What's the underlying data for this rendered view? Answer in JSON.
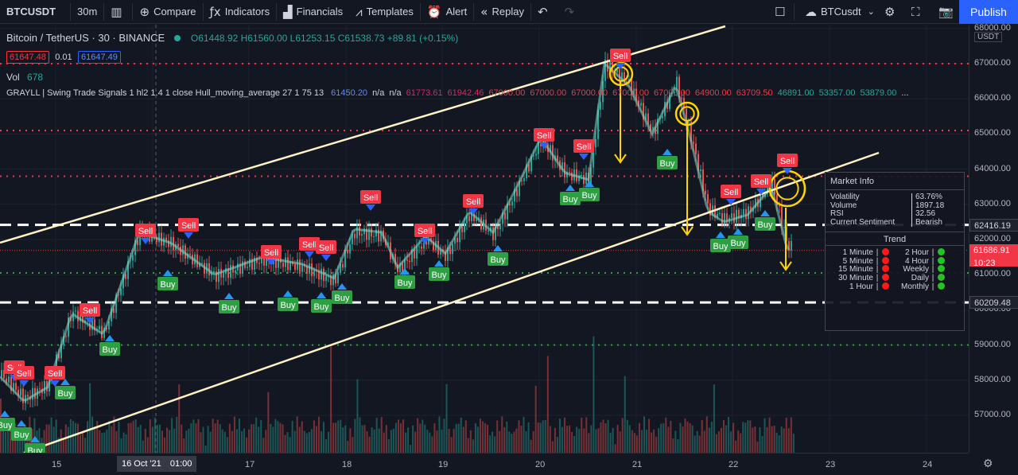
{
  "toolbar": {
    "symbol": "BTCUSDT",
    "interval": "30m",
    "compare": "Compare",
    "indicators": "Indicators",
    "financials": "Financials",
    "templates": "Templates",
    "alert": "Alert",
    "replay": "Replay",
    "layout_name": "BTCusdt",
    "publish": "Publish"
  },
  "legend": {
    "title": "Bitcoin / TetherUS · 30 · BINANCE",
    "ohlc": {
      "o": "O61448.92",
      "h": "H61560.00",
      "l": "L61253.15",
      "c": "C61538.73",
      "chg": "+89.81 (+0.15%)"
    },
    "bid": "61647.48",
    "spread": "0.01",
    "ask": "61647.49",
    "vol_label": "Vol",
    "vol_value": "678",
    "indicator_name": "GRAYLL | Swing Trade Signals 1 hl2 1.4 1 close Hull_moving_average 27 1 75 13",
    "indicator_values": [
      "61450.20",
      "n/a",
      "n/a",
      "61773.61",
      "61942.46",
      "67000.00",
      "67000.00",
      "67000.00",
      "67000.00",
      "67000.00",
      "64900.00",
      "63709.50",
      "46891.00",
      "53357.00",
      "53879.00",
      "..."
    ]
  },
  "price_axis": {
    "currency": "USDT",
    "labels": [
      "68000.00",
      "67000.00",
      "66000.00",
      "65000.00",
      "64000.00",
      "63000.00",
      "62000.00",
      "61000.00",
      "60000.00",
      "59000.00",
      "58000.00",
      "57000.00"
    ],
    "tags": [
      {
        "value": "62416.19",
        "color": "#131722"
      },
      {
        "value": "61686.91",
        "sub": "10:23",
        "color": "#f23645"
      },
      {
        "value": "60209.48",
        "color": "#131722"
      }
    ]
  },
  "time_axis": {
    "labels": [
      "15",
      "17",
      "18",
      "19",
      "20",
      "21",
      "22",
      "23",
      "24"
    ],
    "crosshair_date": "16 Oct '21",
    "crosshair_time": "01:00"
  },
  "signals": {
    "sell_label": "Sell",
    "buy_label": "Buy"
  },
  "market_info": {
    "title": "Market Info",
    "rows": [
      {
        "key": "Volatility",
        "value": "63.76%"
      },
      {
        "key": "Volume",
        "value": "1897.18"
      },
      {
        "key": "RSI",
        "value": "32.56"
      },
      {
        "key": "Current Sentiment",
        "value": "Bearish"
      }
    ],
    "trend_title": "Trend",
    "trend_rows": [
      {
        "left": "1 Minute",
        "left_state": "red",
        "right": "2 Hour",
        "right_state": "green"
      },
      {
        "left": "5 Minute",
        "left_state": "red",
        "right": "4 Hour",
        "right_state": "green"
      },
      {
        "left": "15 Minute",
        "left_state": "red",
        "right": "Weekly",
        "right_state": "green"
      },
      {
        "left": "30 Minute",
        "left_state": "red",
        "right": "Daily",
        "right_state": "green"
      },
      {
        "left": "1 Hour",
        "left_state": "red",
        "right": "Monthly",
        "right_state": "green"
      }
    ]
  },
  "colors": {
    "up": "#26a69a",
    "down": "#ef5350",
    "sell": "#f23645",
    "buy": "#2ea043",
    "trendline": "#fff3c4",
    "arrow": "#ffd400"
  }
}
